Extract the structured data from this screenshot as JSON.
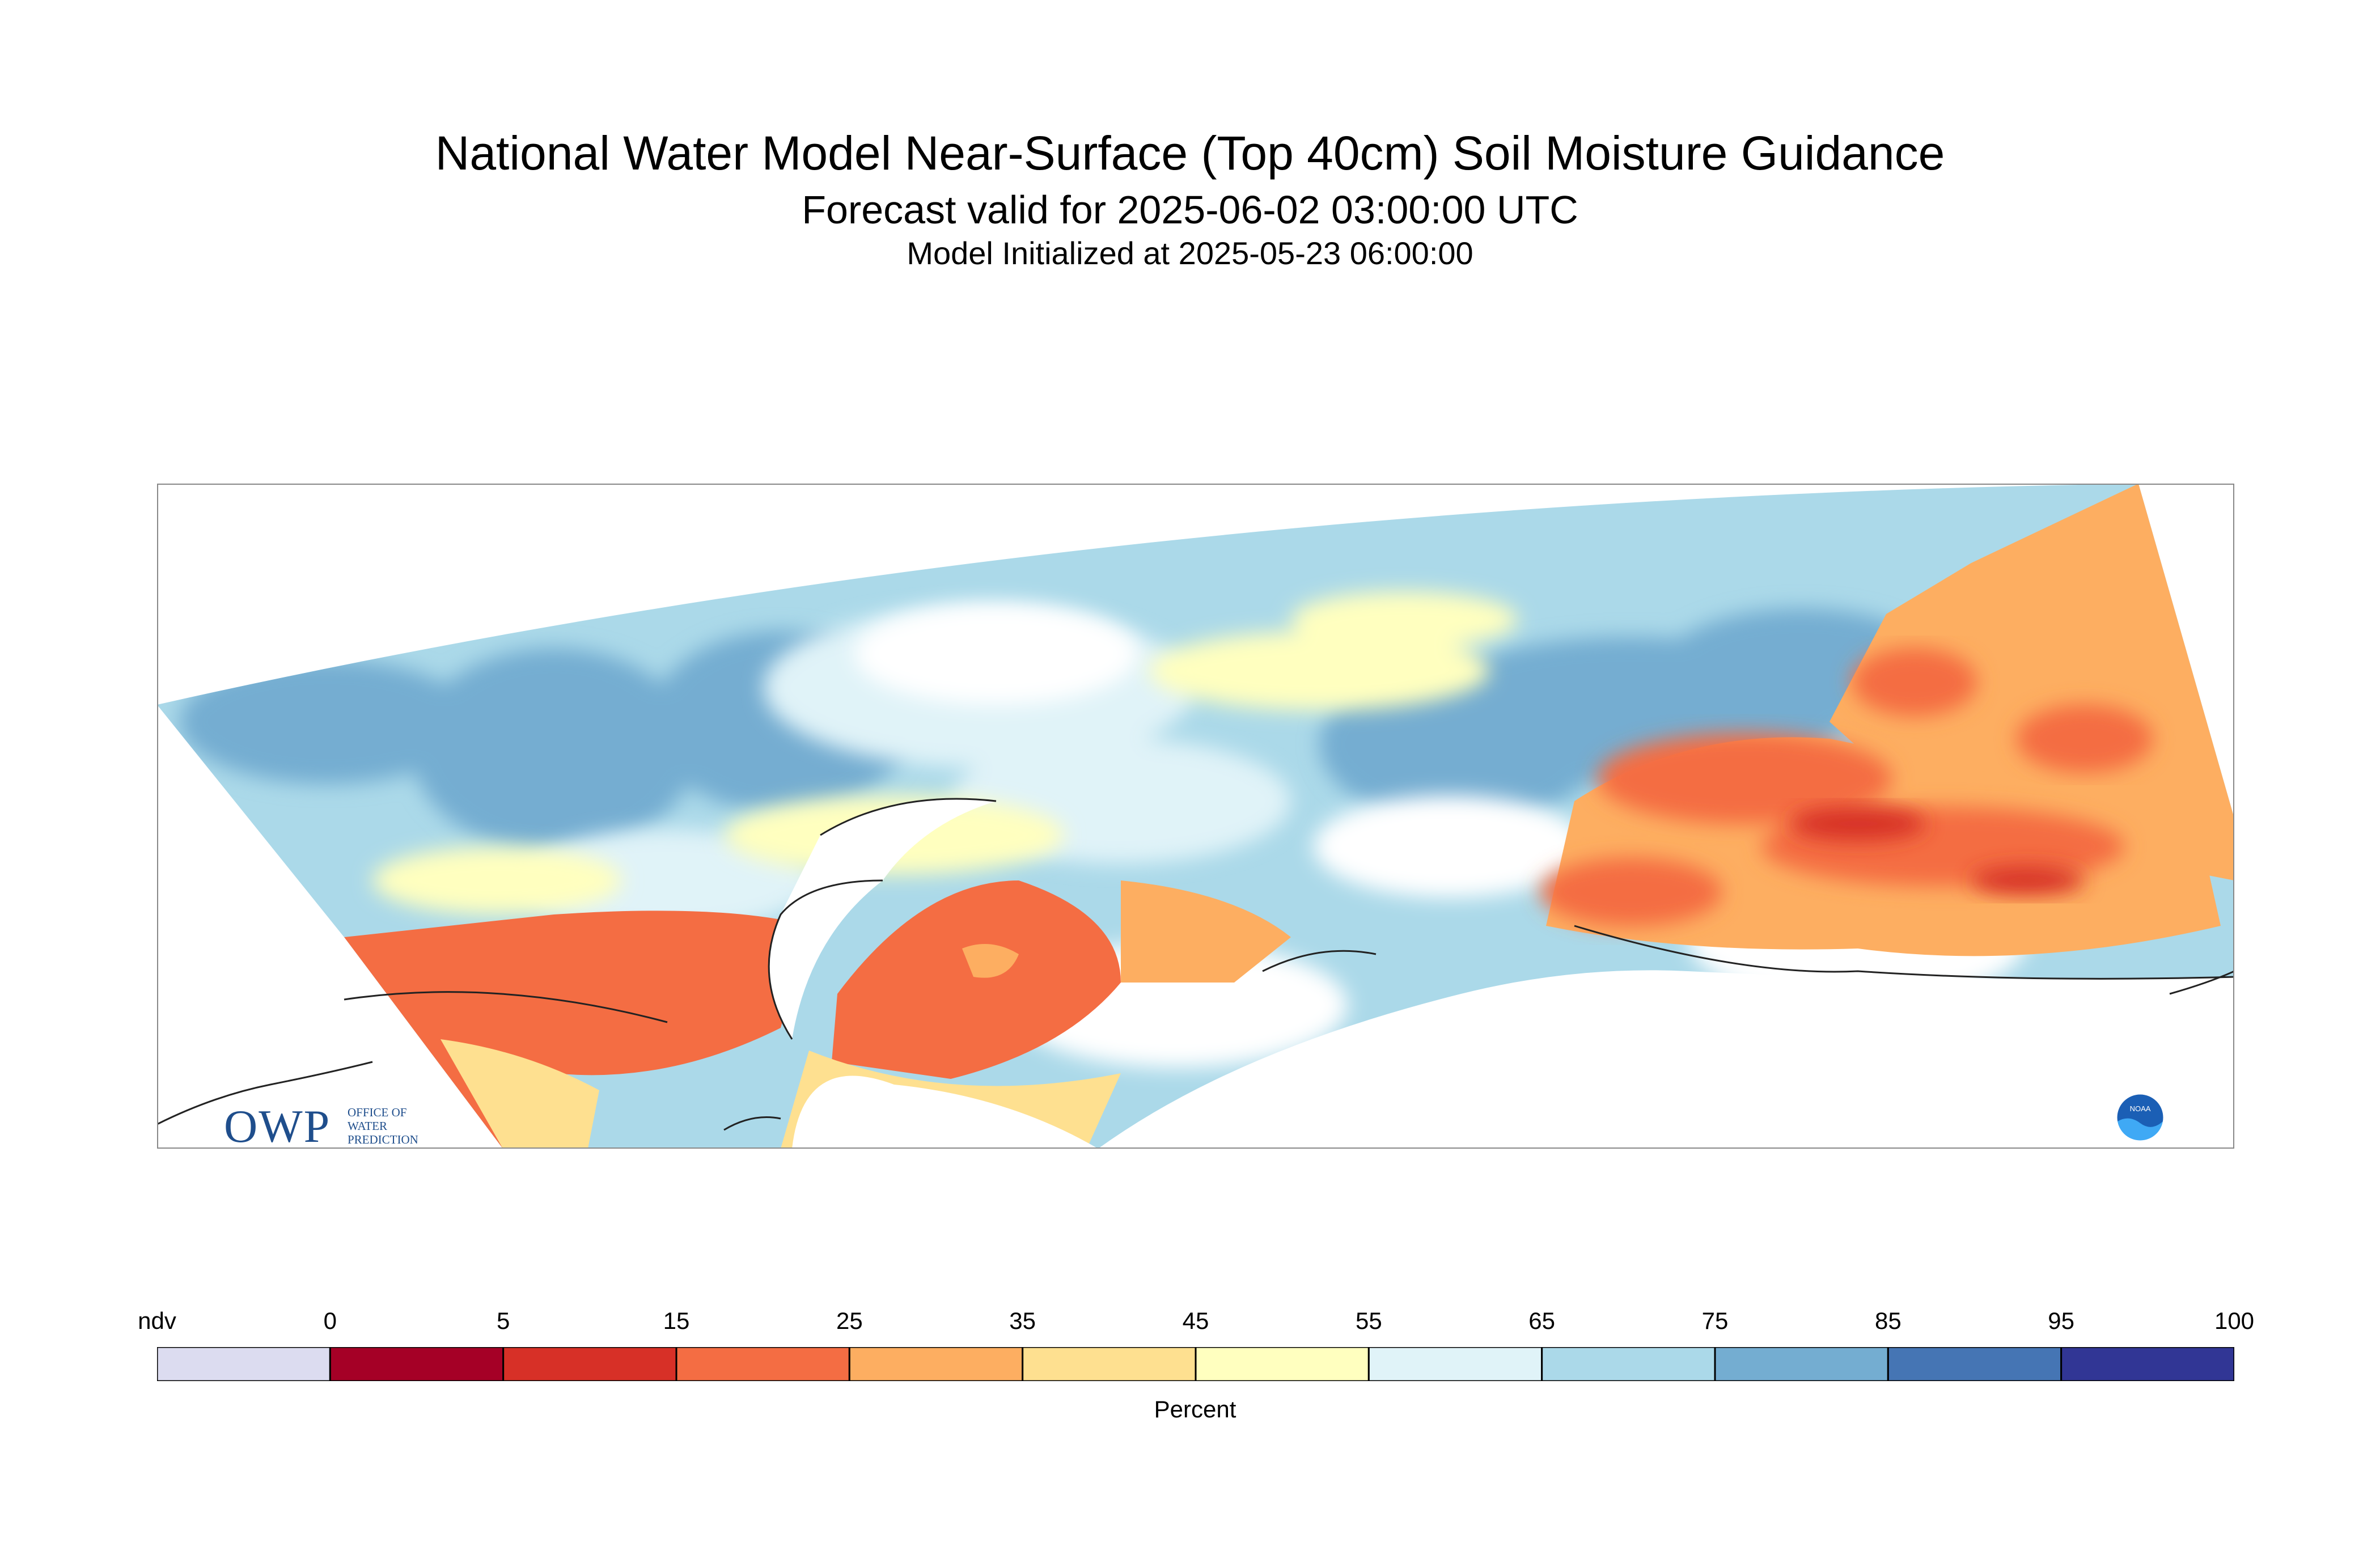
{
  "title": "National Water Model Near-Surface (Top 40cm) Soil Moisture Guidance",
  "subtitle": "Forecast valid for 2025-06-02 03:00:00 UTC",
  "init_line": "Model Initialized at 2025-05-23 06:00:00",
  "legend": {
    "label": "Percent",
    "ticks": [
      "ndv",
      "0",
      "5",
      "15",
      "25",
      "35",
      "45",
      "55",
      "65",
      "75",
      "85",
      "95",
      "100"
    ],
    "bins": [
      {
        "range": "ndv",
        "color": "#dcdcf0"
      },
      {
        "range": "0-5",
        "color": "#a50026"
      },
      {
        "range": "5-15",
        "color": "#d73027"
      },
      {
        "range": "15-25",
        "color": "#f46d43"
      },
      {
        "range": "25-35",
        "color": "#fdae61"
      },
      {
        "range": "35-45",
        "color": "#fee090"
      },
      {
        "range": "45-55",
        "color": "#ffffbf"
      },
      {
        "range": "55-65",
        "color": "#e0f3f8"
      },
      {
        "range": "65-75",
        "color": "#abd9e9"
      },
      {
        "range": "75-85",
        "color": "#74add1"
      },
      {
        "range": "85-95",
        "color": "#4575b4"
      },
      {
        "range": "95-100",
        "color": "#313695"
      }
    ]
  },
  "logos": {
    "owp": {
      "big": "OWP",
      "lines": [
        "OFFICE OF",
        "WATER",
        "PREDICTION"
      ]
    },
    "noaa": {
      "text": "NOAA",
      "icon": "noaa-logo"
    }
  }
}
